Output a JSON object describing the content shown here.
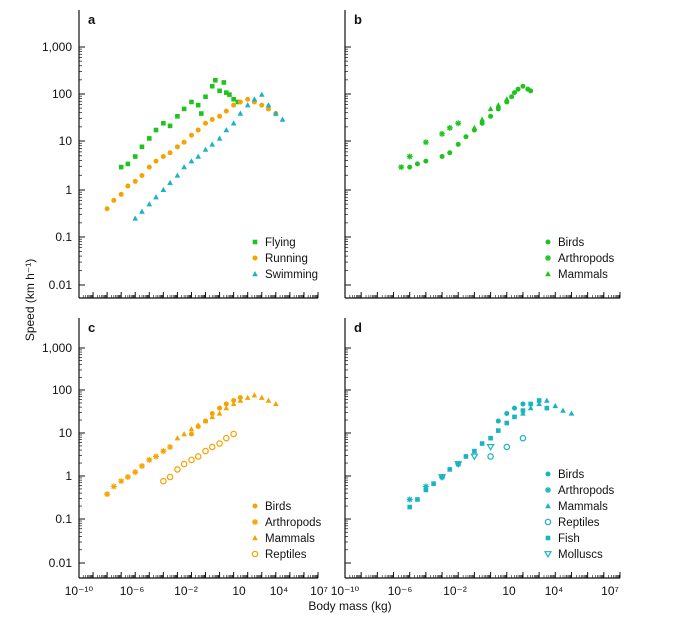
{
  "figure": {
    "ylabel": "Speed (km h⁻¹)",
    "xlabel": "Body mass (kg)",
    "x_ticks": [
      "10⁻¹⁰",
      "10⁻⁶",
      "10⁻²",
      "10",
      "10⁴",
      "10⁷"
    ],
    "y_ticks": [
      "0.01",
      "0.1",
      "1",
      "10",
      "100",
      "1,000"
    ]
  },
  "colors": {
    "flying": "#1fc21f",
    "running": "#f5a300",
    "swimming": "#1ab3c4",
    "silhouette": "#111111"
  },
  "chart_data": [
    {
      "panel": "a",
      "type": "scatter",
      "xscale": "log",
      "yscale": "log",
      "xlim": [
        1e-10,
        10000000.0
      ],
      "ylim": [
        0.005,
        2000
      ],
      "legend_position": "bottom-right",
      "series": [
        {
          "name": "Flying",
          "marker": "square",
          "color": "#1fc21f",
          "x": [
            1e-07,
            3e-07,
            1e-06,
            3e-06,
            1e-05,
            3e-05,
            0.0001,
            0.0003,
            0.001,
            0.003,
            0.01,
            0.03,
            0.1,
            0.3,
            1,
            2,
            3,
            5,
            10,
            20,
            0.05,
            0.5
          ],
          "y": [
            3,
            3.5,
            5,
            8,
            12,
            18,
            25,
            22,
            35,
            50,
            70,
            60,
            90,
            150,
            120,
            180,
            110,
            100,
            80,
            70,
            40,
            200
          ]
        },
        {
          "name": "Running",
          "marker": "circle",
          "color": "#f5a300",
          "x": [
            1e-08,
            3e-08,
            1e-07,
            3e-07,
            1e-06,
            3e-06,
            1e-05,
            3e-05,
            0.0001,
            0.0003,
            0.001,
            0.003,
            0.01,
            0.03,
            0.1,
            0.3,
            1,
            3,
            10,
            30,
            100,
            300,
            1000,
            3000,
            10000.0
          ],
          "y": [
            0.4,
            0.6,
            0.8,
            1.2,
            1.5,
            2,
            3,
            4,
            5,
            6,
            8,
            10,
            14,
            18,
            25,
            30,
            35,
            45,
            60,
            70,
            80,
            70,
            60,
            50,
            40
          ]
        },
        {
          "name": "Swimming",
          "marker": "triangle",
          "color": "#1ab3c4",
          "x": [
            1e-06,
            3e-06,
            1e-05,
            3e-05,
            0.0001,
            0.0003,
            0.001,
            0.003,
            0.01,
            0.03,
            0.1,
            0.3,
            1,
            3,
            10,
            30,
            100,
            300,
            1000,
            3000,
            10000.0,
            30000.0
          ],
          "y": [
            0.25,
            0.35,
            0.5,
            0.7,
            1,
            1.4,
            2,
            3,
            4,
            5,
            7,
            9,
            12,
            18,
            25,
            40,
            60,
            80,
            100,
            60,
            40,
            30
          ]
        }
      ]
    },
    {
      "panel": "b",
      "type": "scatter",
      "xscale": "log",
      "yscale": "log",
      "xlim": [
        1e-10,
        10000000.0
      ],
      "ylim": [
        0.005,
        2000
      ],
      "legend_position": "bottom-right",
      "series": [
        {
          "name": "Birds",
          "marker": "circle",
          "color": "#1fc21f",
          "x": [
            1e-06,
            3e-06,
            1e-05,
            0.0001,
            0.0003,
            0.001,
            0.003,
            0.01,
            0.03,
            0.1,
            0.3,
            1,
            2,
            3,
            5,
            10,
            20,
            30
          ],
          "y": [
            3,
            3.5,
            4,
            5,
            6,
            9,
            13,
            18,
            25,
            35,
            50,
            70,
            90,
            110,
            130,
            150,
            130,
            120
          ]
        },
        {
          "name": "Arthropods",
          "marker": "asterisk",
          "color": "#1fc21f",
          "x": [
            3e-07,
            1e-06,
            1e-05,
            0.0001,
            0.0003,
            0.001
          ],
          "y": [
            3,
            5,
            10,
            15,
            20,
            25
          ]
        },
        {
          "name": "Mammals",
          "marker": "triangle",
          "color": "#1fc21f",
          "x": [
            0.01,
            0.03,
            0.1,
            0.3,
            1
          ],
          "y": [
            20,
            30,
            50,
            60,
            80
          ]
        }
      ]
    },
    {
      "panel": "c",
      "type": "scatter",
      "xscale": "log",
      "yscale": "log",
      "xlim": [
        1e-10,
        10000000.0
      ],
      "ylim": [
        0.005,
        2000
      ],
      "legend_position": "bottom-right",
      "series": [
        {
          "name": "Birds",
          "marker": "circle",
          "color": "#f5a300",
          "x": [
            0.01,
            0.03,
            0.1,
            0.3,
            1,
            3,
            10,
            30
          ],
          "y": [
            10,
            15,
            20,
            30,
            40,
            50,
            60,
            70
          ]
        },
        {
          "name": "Arthropods",
          "marker": "asterisk",
          "color": "#f5a300",
          "x": [
            1e-08,
            3e-08,
            1e-07,
            3e-07,
            1e-06,
            3e-06,
            1e-05,
            3e-05,
            0.0001,
            0.0003
          ],
          "y": [
            0.4,
            0.6,
            0.8,
            1,
            1.3,
            1.8,
            2.5,
            3,
            4,
            5
          ]
        },
        {
          "name": "Mammals",
          "marker": "triangle",
          "color": "#f5a300",
          "x": [
            0.001,
            0.003,
            0.01,
            0.03,
            0.1,
            0.3,
            1,
            3,
            10,
            30,
            100,
            300,
            1000,
            3000,
            10000.0
          ],
          "y": [
            8,
            10,
            13,
            16,
            20,
            25,
            30,
            40,
            50,
            60,
            70,
            80,
            70,
            60,
            50
          ]
        },
        {
          "name": "Reptiles",
          "marker": "circle-open",
          "color": "#f5a300",
          "x": [
            0.0001,
            0.0003,
            0.001,
            0.003,
            0.01,
            0.03,
            0.1,
            0.3,
            1,
            3,
            10
          ],
          "y": [
            0.8,
            1,
            1.5,
            2,
            2.5,
            3,
            4,
            5,
            6,
            8,
            10
          ]
        }
      ]
    },
    {
      "panel": "d",
      "type": "scatter",
      "xscale": "log",
      "yscale": "log",
      "xlim": [
        1e-10,
        10000000.0
      ],
      "ylim": [
        0.005,
        2000
      ],
      "legend_position": "bottom-right",
      "series": [
        {
          "name": "Birds",
          "marker": "circle",
          "color": "#1ab3c4",
          "x": [
            0.3,
            1,
            3,
            10
          ],
          "y": [
            20,
            30,
            40,
            50
          ]
        },
        {
          "name": "Arthropods",
          "marker": "asterisk",
          "color": "#1ab3c4",
          "x": [
            1e-06,
            1e-05,
            0.0001,
            0.001
          ],
          "y": [
            0.3,
            0.6,
            1,
            2
          ]
        },
        {
          "name": "Mammals",
          "marker": "triangle",
          "color": "#1ab3c4",
          "x": [
            10,
            30,
            100,
            300,
            1000,
            3000,
            10000.0
          ],
          "y": [
            30,
            40,
            50,
            60,
            45,
            35,
            30
          ]
        },
        {
          "name": "Reptiles",
          "marker": "circle-open",
          "color": "#1ab3c4",
          "x": [
            0.1,
            1,
            10
          ],
          "y": [
            3,
            5,
            8
          ]
        },
        {
          "name": "Fish",
          "marker": "square",
          "color": "#1ab3c4",
          "x": [
            1e-06,
            3e-06,
            1e-05,
            3e-05,
            0.0001,
            0.0003,
            0.001,
            0.003,
            0.01,
            0.03,
            0.1,
            0.3,
            1,
            3,
            10,
            30,
            100,
            300
          ],
          "y": [
            0.2,
            0.3,
            0.5,
            0.7,
            1,
            1.5,
            2,
            3,
            4,
            6,
            8,
            12,
            18,
            25,
            35,
            50,
            60,
            40
          ]
        },
        {
          "name": "Molluscs",
          "marker": "triangle-down-open",
          "color": "#1ab3c4",
          "x": [
            0.0001,
            0.001,
            0.01,
            0.1
          ],
          "y": [
            1,
            2,
            3,
            5
          ]
        }
      ]
    }
  ]
}
